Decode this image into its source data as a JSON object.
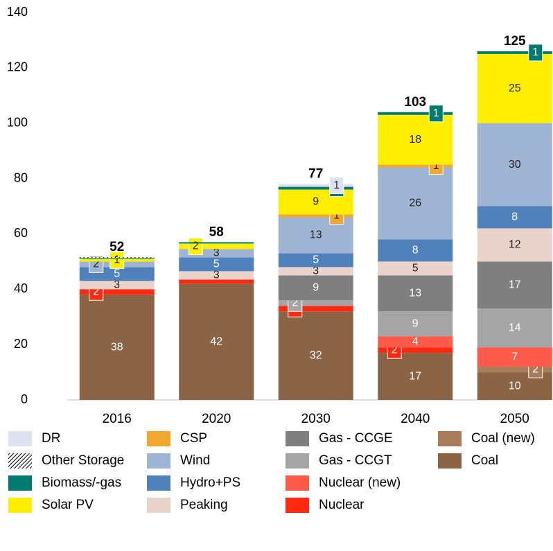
{
  "chart_data": {
    "type": "stacked_bar",
    "categories": [
      "2016",
      "2020",
      "2030",
      "2040",
      "2050"
    ],
    "totals": [
      52,
      58,
      77,
      103,
      125
    ],
    "ylim": [
      0,
      140
    ],
    "yticks": [
      0,
      20,
      40,
      60,
      80,
      100,
      120,
      140
    ],
    "series": [
      {
        "name": "DR",
        "color": "#dce3ee",
        "values": [
          0,
          0,
          1,
          0,
          0
        ],
        "value_labels": [
          null,
          null,
          "1",
          null,
          null
        ]
      },
      {
        "name": "Other Storage",
        "color": "hatch",
        "values": [
          0.3,
          0,
          0,
          0,
          0
        ],
        "value_labels": [
          null,
          null,
          null,
          null,
          null
        ]
      },
      {
        "name": "Biomass/-gas",
        "color": "#007a6e",
        "values": [
          0.3,
          0.5,
          1,
          1,
          1
        ],
        "value_labels": [
          null,
          null,
          "1",
          "1",
          "1"
        ]
      },
      {
        "name": "Solar PV",
        "color": "#ffee00",
        "values": [
          1,
          2,
          9,
          18,
          25
        ],
        "value_labels": [
          "1",
          "2",
          "9",
          "18",
          "25"
        ]
      },
      {
        "name": "CSP",
        "color": "#f0a830",
        "values": [
          0,
          0,
          1,
          1,
          0
        ],
        "value_labels": [
          null,
          null,
          "1",
          "1",
          null
        ]
      },
      {
        "name": "Wind",
        "color": "#9fb3d3",
        "values": [
          2,
          3,
          13,
          26,
          30
        ],
        "value_labels": [
          "2",
          "3",
          "13",
          "26",
          "30"
        ]
      },
      {
        "name": "Hydro+PS",
        "color": "#4f81bd",
        "values": [
          5,
          5,
          5,
          8,
          8
        ],
        "value_labels": [
          "5",
          "5",
          "5",
          "8",
          "8"
        ]
      },
      {
        "name": "Peaking",
        "color": "#e9d3cb",
        "values": [
          3,
          3,
          3,
          5,
          12
        ],
        "value_labels": [
          "3",
          "3",
          "3",
          "5",
          "12"
        ]
      },
      {
        "name": "Gas - CCGE",
        "color": "#7f7f7f",
        "values": [
          0,
          0,
          9,
          13,
          17
        ],
        "value_labels": [
          null,
          null,
          "9",
          "13",
          "17"
        ]
      },
      {
        "name": "Gas - CCGT",
        "color": "#a5a5a5",
        "values": [
          0,
          0,
          2,
          9,
          14
        ],
        "value_labels": [
          null,
          null,
          "2",
          "9",
          "14"
        ]
      },
      {
        "name": "Nuclear (new)",
        "color": "#ff5a4a",
        "values": [
          0,
          0,
          0,
          4,
          7
        ],
        "value_labels": [
          null,
          null,
          null,
          "4",
          "7"
        ]
      },
      {
        "name": "Nuclear",
        "color": "#ff2a10",
        "values": [
          2,
          1.5,
          2,
          2,
          0
        ],
        "value_labels": [
          "2",
          null,
          "2",
          "2",
          null
        ]
      },
      {
        "name": "Coal (new)",
        "color": "#a87b5a",
        "values": [
          0,
          0,
          0,
          0,
          2
        ],
        "value_labels": [
          null,
          null,
          null,
          null,
          "2"
        ]
      },
      {
        "name": "Coal",
        "color": "#8b6446",
        "values": [
          38,
          42,
          32,
          17,
          10
        ],
        "value_labels": [
          "38",
          "42",
          "32",
          "17",
          "10"
        ]
      }
    ]
  }
}
